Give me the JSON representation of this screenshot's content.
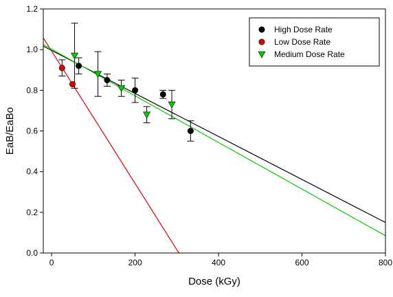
{
  "chart_data": {
    "type": "scatter",
    "title": "",
    "xlabel": "Dose (kGy)",
    "ylabel": "EaB/EaBo",
    "xlim": [
      -20,
      800
    ],
    "ylim": [
      0.0,
      1.2
    ],
    "xticks": [
      0,
      200,
      400,
      600,
      800
    ],
    "yticks": [
      0.0,
      0.2,
      0.4,
      0.6,
      0.8,
      1.0,
      1.2
    ],
    "grid": false,
    "legend_position": "top-right",
    "series": [
      {
        "name": "High Dose Rate",
        "marker": "circle",
        "color": "#000000",
        "points": [
          {
            "x": 65,
            "y": 0.92,
            "err": 0.04
          },
          {
            "x": 133,
            "y": 0.85,
            "err": 0.03
          },
          {
            "x": 200,
            "y": 0.8,
            "err": 0.06
          },
          {
            "x": 267,
            "y": 0.78,
            "err": 0.02
          },
          {
            "x": 333,
            "y": 0.6,
            "err": 0.05
          }
        ],
        "fit": {
          "x": [
            -20,
            800
          ],
          "y": [
            1.017,
            0.15
          ]
        }
      },
      {
        "name": "Low Dose Rate",
        "marker": "circle",
        "color": "#dd0000",
        "points": [
          {
            "x": 25,
            "y": 0.91,
            "err": 0.04
          },
          {
            "x": 50,
            "y": 0.83,
            "err": 0
          }
        ],
        "fit": {
          "x": [
            -20,
            305
          ],
          "y": [
            1.058,
            0.0
          ]
        }
      },
      {
        "name": "Medium Dose Rate",
        "marker": "triangle-down",
        "color": "#00cc00",
        "points": [
          {
            "x": 55,
            "y": 0.97,
            "err": 0.16
          },
          {
            "x": 111,
            "y": 0.88,
            "err": 0.11
          },
          {
            "x": 167,
            "y": 0.81,
            "err": 0.04
          },
          {
            "x": 228,
            "y": 0.68,
            "err": 0.04
          },
          {
            "x": 288,
            "y": 0.73,
            "err": 0.07
          }
        ],
        "fit": {
          "x": [
            -20,
            800
          ],
          "y": [
            1.025,
            0.085
          ]
        }
      }
    ]
  }
}
